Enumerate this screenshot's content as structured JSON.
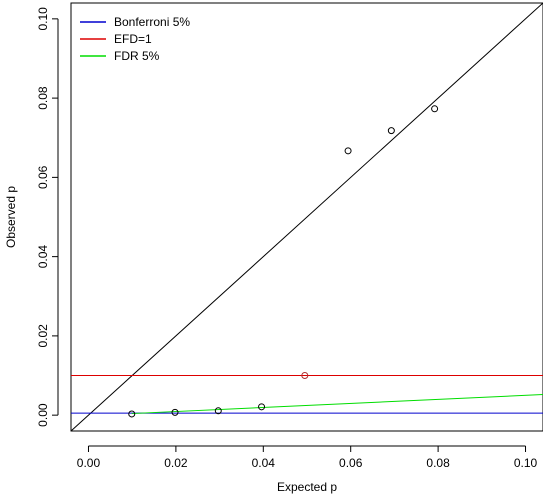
{
  "chart_data": {
    "type": "scatter",
    "title": "",
    "xlabel": "Expected p",
    "ylabel": "Observed p",
    "xlim": [
      -0.004,
      0.104
    ],
    "ylim": [
      -0.004,
      0.104
    ],
    "x_ticks": [
      "0.00",
      "0.02",
      "0.04",
      "0.06",
      "0.08",
      "0.10"
    ],
    "y_ticks": [
      "0.00",
      "0.02",
      "0.04",
      "0.06",
      "0.08",
      "0.10"
    ],
    "points": [
      {
        "x": 0.0099,
        "y": 0.0003,
        "color": "#000000"
      },
      {
        "x": 0.0198,
        "y": 0.0007,
        "color": "#000000"
      },
      {
        "x": 0.0297,
        "y": 0.0011,
        "color": "#000000"
      },
      {
        "x": 0.0396,
        "y": 0.0021,
        "color": "#000000"
      },
      {
        "x": 0.0495,
        "y": 0.01,
        "color": "#b03030"
      },
      {
        "x": 0.0594,
        "y": 0.0667,
        "color": "#000000"
      },
      {
        "x": 0.0693,
        "y": 0.0718,
        "color": "#000000"
      },
      {
        "x": 0.0792,
        "y": 0.0773,
        "color": "#000000"
      }
    ],
    "reference_lines": [
      {
        "kind": "identity",
        "color": "#000000"
      },
      {
        "kind": "horizontal",
        "y": 0.0005,
        "color": "#0000cd"
      },
      {
        "kind": "horizontal",
        "y": 0.01,
        "color": "#dd0000"
      },
      {
        "kind": "segment",
        "x1": 0.0099,
        "y1": 0.0004,
        "x2": 0.104,
        "y2": 0.0052,
        "color": "#00dd00"
      }
    ],
    "legend": {
      "position": "top-left",
      "entries": [
        {
          "label": "Bonferroni 5%",
          "color": "#0000cd"
        },
        {
          "label": "EFD=1",
          "color": "#dd0000"
        },
        {
          "label": "FDR 5%",
          "color": "#00dd00"
        }
      ]
    },
    "grid": false
  }
}
